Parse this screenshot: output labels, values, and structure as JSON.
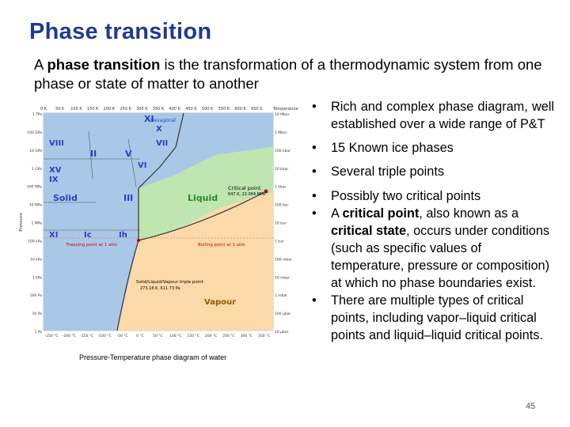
{
  "title": "Phase transition",
  "intro": [
    {
      "text": "A "
    },
    {
      "text": "phase transition",
      "bold": true
    },
    {
      "text": " is the transformation of a thermodynamic system from one phase or state of matter to another"
    }
  ],
  "figure": {
    "caption": "Pressure-Temperature phase diagram of water",
    "top_ticks": [
      "0 K",
      "50 K",
      "100 K",
      "150 K",
      "200 K",
      "250 K",
      "300 K",
      "350 K",
      "400 K",
      "450 K",
      "500 K",
      "550 K",
      "600 K",
      "650 K"
    ],
    "top_axis_label": "Temperature",
    "left_ticks": [
      "1 TPa",
      "100 GPa",
      "10 GPa",
      "1 GPa",
      "100 MPa",
      "10 MPa",
      "1 MPa",
      "100 kPa",
      "10 kPa",
      "1 kPa",
      "100 Pa",
      "10 Pa",
      "1 Pa"
    ],
    "left_axis_label": "Pressure",
    "right_ticks": [
      "10 Mbar",
      "1 Mbar",
      "100 kbar",
      "10 kbar",
      "1 kbar",
      "100 bar",
      "10 bar",
      "1 bar",
      "100 mbar",
      "10 mbar",
      "1 mbar",
      "100 μbar",
      "10 μbar"
    ],
    "bottom_ticks": [
      "-250 °C",
      "-200 °C",
      "-150 °C",
      "-100 °C",
      "-50 °C",
      "0 °C",
      "50 °C",
      "100 °C",
      "150 °C",
      "200 °C",
      "250 °C",
      "300 °C",
      "350 °C"
    ],
    "labels": [
      "XI",
      "Hexagonal",
      "X",
      "VIII",
      "VII",
      "II",
      "V",
      "VI",
      "XV",
      "IX",
      "Solid",
      "III",
      "Liquid",
      "Critical point",
      "647 K, 22.064 MPa",
      "XI",
      "Ic",
      "Ih",
      "Freezing point at 1 atm",
      "Boiling point at 1 atm",
      "Solid/Liquid/Vapour triple point",
      "273.16 K, 611.73 Pa",
      "Vapour"
    ]
  },
  "bullets": [
    [
      {
        "text": "Rich  and complex phase diagram,  well established over a wide range of P&T"
      }
    ],
    [
      {
        "text": "15 Known ice phases"
      }
    ],
    [
      {
        "text": "Several triple points"
      }
    ],
    [
      {
        "text": "Possibly two critical points"
      }
    ],
    [
      {
        "text": "A "
      },
      {
        "text": "critical point",
        "bold": true
      },
      {
        "text": ", also known as a "
      },
      {
        "text": "critical state",
        "bold": true
      },
      {
        "text": ", occurs under conditions (such as specific values of temperature, pressure or composition) at which no phase boundaries exist."
      }
    ],
    [
      {
        "text": "There are multiple types of critical points, including vapor–liquid critical points and liquid–liquid critical points."
      }
    ]
  ],
  "page_number": "45"
}
